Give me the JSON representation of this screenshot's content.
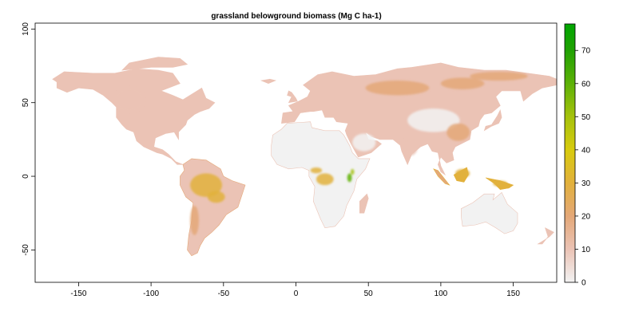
{
  "title": "grassland belowground biomass (Mg C ha-1)",
  "map": {
    "type": "raster",
    "projection": "longitude-latitude",
    "xlim": [
      -180,
      180
    ],
    "ylim": [
      -72,
      104
    ],
    "x_ticks": [
      -150,
      -100,
      -50,
      0,
      50,
      100,
      150
    ],
    "x_tick_labels": [
      "-150",
      "-100",
      "-50",
      "0",
      "50",
      "100",
      "150"
    ],
    "y_ticks": [
      -50,
      0,
      50,
      100
    ],
    "y_tick_labels": [
      "-50",
      "0",
      "50",
      "100"
    ],
    "background_color": "#ffffff",
    "no_data_regions": [
      "Greenland",
      "Antarctica",
      "oceans"
    ],
    "regions": [
      {
        "name": "North America",
        "level": 12
      },
      {
        "name": "Siberia",
        "level": 24
      },
      {
        "name": "Sahara and Arabia",
        "level": 2
      },
      {
        "name": "Amazon basin",
        "level": 30
      },
      {
        "name": "Central Africa",
        "level": 30
      },
      {
        "name": "East Africa highlands",
        "level": 65
      },
      {
        "name": "Southeast Asia",
        "level": 30
      },
      {
        "name": "Australia",
        "level": 5
      }
    ]
  },
  "legend": {
    "min": 0,
    "max": 78,
    "ticks": [
      0,
      10,
      20,
      30,
      40,
      50,
      60,
      70
    ],
    "tick_labels": [
      "0",
      "10",
      "20",
      "30",
      "40",
      "50",
      "60",
      "70"
    ],
    "colors": [
      {
        "value": 0,
        "color": "#f2f2f2"
      },
      {
        "value": 10,
        "color": "#ebc3b5"
      },
      {
        "value": 20,
        "color": "#e4a878"
      },
      {
        "value": 30,
        "color": "#e2b13c"
      },
      {
        "value": 40,
        "color": "#d8cb0e"
      },
      {
        "value": 50,
        "color": "#a5c20c"
      },
      {
        "value": 60,
        "color": "#5db107"
      },
      {
        "value": 70,
        "color": "#20a103"
      },
      {
        "value": 78,
        "color": "#00a600"
      }
    ]
  }
}
